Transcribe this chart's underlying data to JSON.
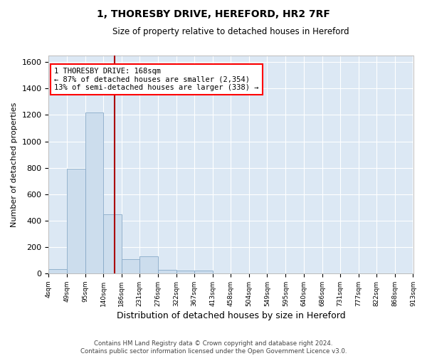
{
  "title": "1, THORESBY DRIVE, HEREFORD, HR2 7RF",
  "subtitle": "Size of property relative to detached houses in Hereford",
  "xlabel": "Distribution of detached houses by size in Hereford",
  "ylabel": "Number of detached properties",
  "bar_color": "#ccdded",
  "bar_edge_color": "#88aac8",
  "background_color": "#dce8f4",
  "grid_color": "#ffffff",
  "red_line_x": 168,
  "annotation_line1": "1 THORESBY DRIVE: 168sqm",
  "annotation_line2": "← 87% of detached houses are smaller (2,354)",
  "annotation_line3": "13% of semi-detached houses are larger (338) →",
  "footer_text": "Contains HM Land Registry data © Crown copyright and database right 2024.\nContains public sector information licensed under the Open Government Licence v3.0.",
  "bin_edges": [
    4,
    49,
    95,
    140,
    186,
    231,
    276,
    322,
    367,
    413,
    458,
    504,
    549,
    595,
    640,
    686,
    731,
    777,
    822,
    868,
    913
  ],
  "bar_heights": [
    30,
    790,
    1220,
    450,
    105,
    130,
    25,
    20,
    20,
    0,
    0,
    0,
    0,
    0,
    0,
    0,
    0,
    0,
    0,
    0
  ],
  "ylim": [
    0,
    1650
  ],
  "yticks": [
    0,
    200,
    400,
    600,
    800,
    1000,
    1200,
    1400,
    1600
  ],
  "tick_labels": [
    "4sqm",
    "49sqm",
    "95sqm",
    "140sqm",
    "186sqm",
    "231sqm",
    "276sqm",
    "322sqm",
    "367sqm",
    "413sqm",
    "458sqm",
    "504sqm",
    "549sqm",
    "595sqm",
    "640sqm",
    "686sqm",
    "731sqm",
    "777sqm",
    "822sqm",
    "868sqm",
    "913sqm"
  ]
}
